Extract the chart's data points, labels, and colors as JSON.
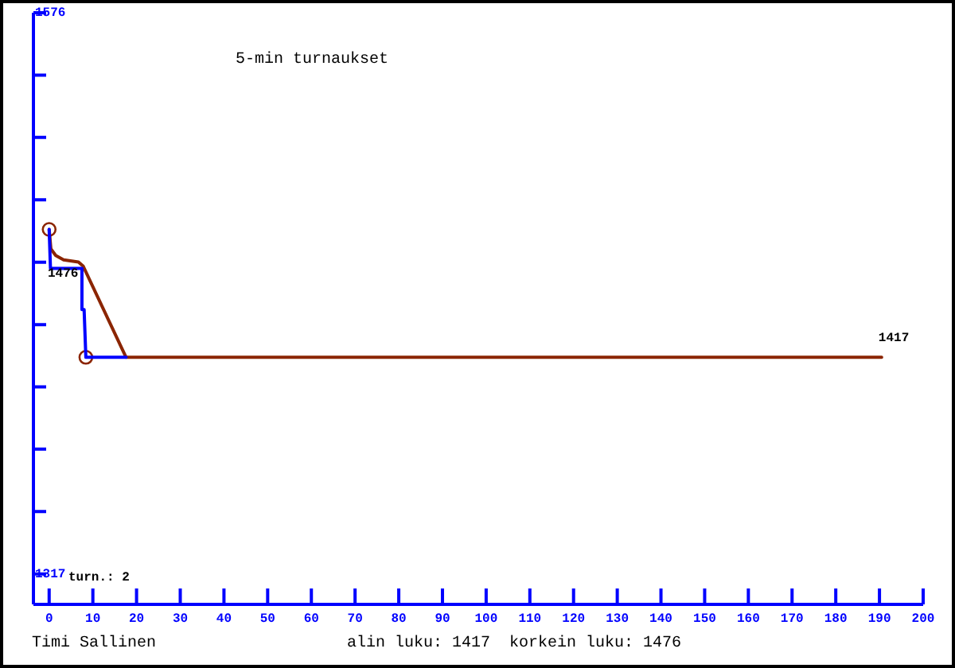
{
  "chart_data": {
    "type": "line",
    "title": "5-min turnaukset",
    "xlim": [
      -3.6,
      200
    ],
    "xticks": [
      0,
      10,
      20,
      30,
      40,
      50,
      60,
      70,
      80,
      90,
      100,
      110,
      120,
      130,
      140,
      150,
      160,
      170,
      180,
      190,
      200
    ],
    "ylim": [
      1303,
      1576
    ],
    "yticks": [
      1317,
      {
        "value": 1345.8,
        "label": null
      },
      {
        "value": 1374.6,
        "label": null
      },
      {
        "value": 1403.4,
        "label": null
      },
      {
        "value": 1432.1,
        "label": null
      },
      {
        "value": 1460.9,
        "label": null
      },
      {
        "value": 1489.7,
        "label": null
      },
      {
        "value": 1518.5,
        "label": null
      },
      {
        "value": 1547.2,
        "label": null
      },
      1576
    ],
    "marker": "none",
    "series": [
      {
        "color": "#0000ff",
        "x": [
          0,
          0.3,
          7.5,
          7.5,
          8.0,
          8.4,
          17.6
        ],
        "values": [
          1476,
          1458,
          1458,
          1439,
          1439,
          1417,
          1417
        ]
      },
      {
        "color": "#8b2500",
        "x": [
          0,
          0.4,
          1.5,
          3.3,
          6.7,
          7.8,
          17.6,
          190.5
        ],
        "values": [
          1476,
          1467,
          1464,
          1462,
          1461,
          1459,
          1417,
          1417
        ]
      },
      {
        "type": "scatter",
        "marker": "circle",
        "color": "#8b2500",
        "x": [
          0,
          8.4
        ],
        "values": [
          1476,
          1417
        ]
      }
    ],
    "annotations": [
      "1476",
      {
        "text": "1417",
        "x": 190.5,
        "y": 1417
      },
      "turn.: 2",
      "Timi Sallinen",
      "alin luku: 1417  korkein luku: 1476"
    ]
  }
}
